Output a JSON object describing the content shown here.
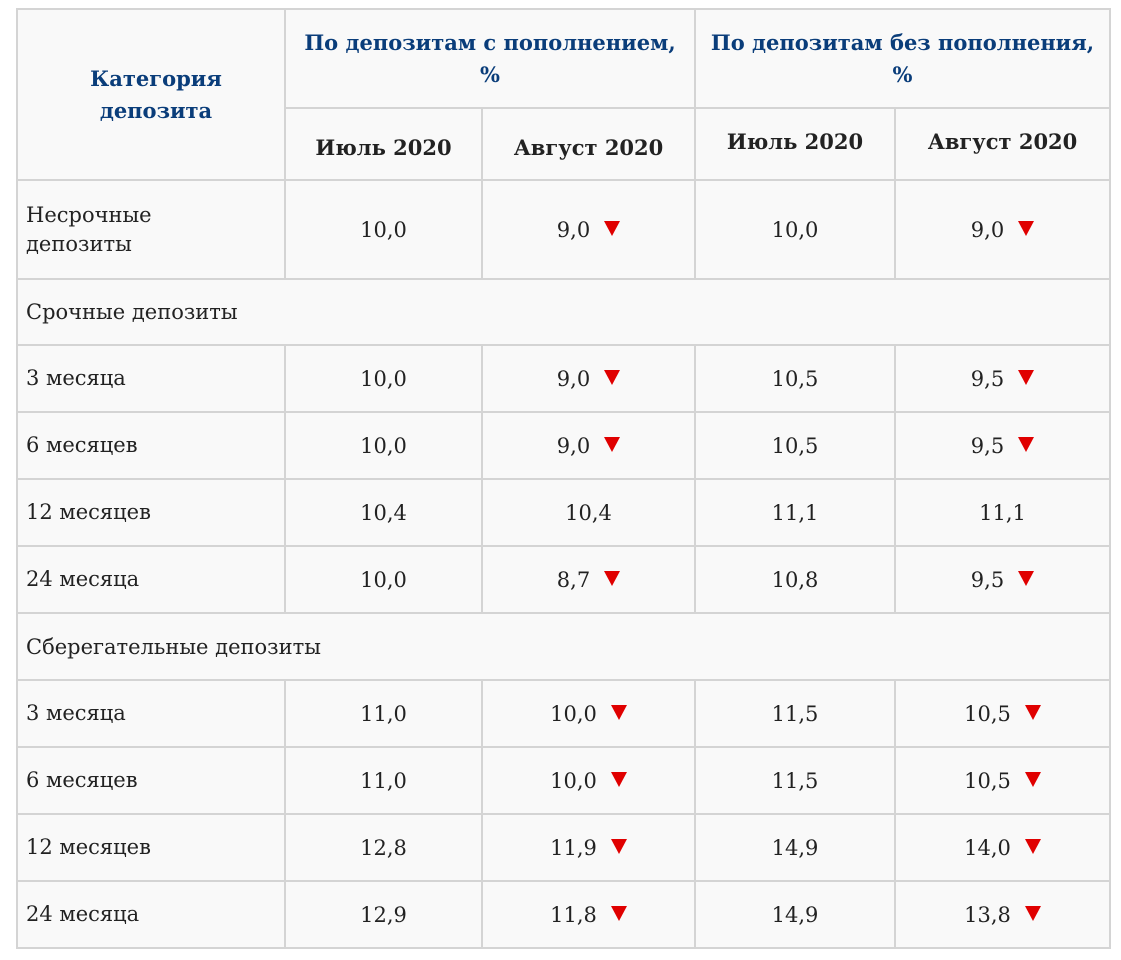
{
  "header": {
    "category": "Категория депозита",
    "group_with_topup": "По депозитам с пополнением, %",
    "group_without_topup": "По депозитам без пополнения, %",
    "months": [
      "Июль 2020",
      "Август 2020",
      "Июль 2020",
      "Август 2020"
    ]
  },
  "indicator": {
    "decrease_icon": "red-down-triangle-icon",
    "color": "#e00000"
  },
  "demand": {
    "label": "Несрочные депозиты",
    "values": [
      "10,0",
      "9,0",
      "10,0",
      "9,0"
    ],
    "decreased": [
      false,
      true,
      false,
      true
    ]
  },
  "term_section": {
    "label": "Срочные депозиты",
    "rows": [
      {
        "label": "3 месяца",
        "values": [
          "10,0",
          "9,0",
          "10,5",
          "9,5"
        ],
        "decreased": [
          false,
          true,
          false,
          true
        ]
      },
      {
        "label": "6 месяцев",
        "values": [
          "10,0",
          "9,0",
          "10,5",
          "9,5"
        ],
        "decreased": [
          false,
          true,
          false,
          true
        ]
      },
      {
        "label": "12 месяцев",
        "values": [
          "10,4",
          "10,4",
          "11,1",
          "11,1"
        ],
        "decreased": [
          false,
          false,
          false,
          false
        ]
      },
      {
        "label": "24 месяца",
        "values": [
          "10,0",
          "8,7",
          "10,8",
          "9,5"
        ],
        "decreased": [
          false,
          true,
          false,
          true
        ]
      }
    ]
  },
  "savings_section": {
    "label": "Сберегательные депозиты",
    "rows": [
      {
        "label": "3 месяца",
        "values": [
          "11,0",
          "10,0",
          "11,5",
          "10,5"
        ],
        "decreased": [
          false,
          true,
          false,
          true
        ]
      },
      {
        "label": "6 месяцев",
        "values": [
          "11,0",
          "10,0",
          "11,5",
          "10,5"
        ],
        "decreased": [
          false,
          true,
          false,
          true
        ]
      },
      {
        "label": "12 месяцев",
        "values": [
          "12,8",
          "11,9",
          "14,9",
          "14,0"
        ],
        "decreased": [
          false,
          true,
          false,
          true
        ]
      },
      {
        "label": "24 месяца",
        "values": [
          "12,9",
          "11,8",
          "14,9",
          "13,8"
        ],
        "decreased": [
          false,
          true,
          false,
          true
        ]
      }
    ]
  }
}
